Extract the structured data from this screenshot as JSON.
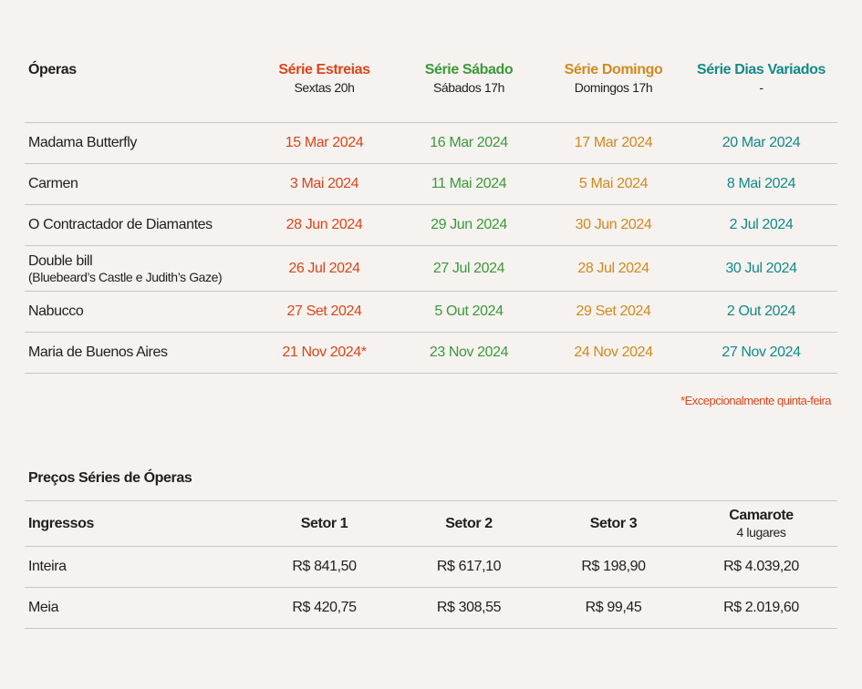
{
  "schedule": {
    "header": {
      "label": "Óperas",
      "series": [
        {
          "name": "Série Estreias",
          "sub": "Sextas 20h",
          "color": "#d9461b"
        },
        {
          "name": "Série Sábado",
          "sub": "Sábados 17h",
          "color": "#3a9a3a"
        },
        {
          "name": "Série Domingo",
          "sub": "Domingos 17h",
          "color": "#cf8a1f"
        },
        {
          "name": "Série Dias Variados",
          "sub": "-",
          "color": "#128a8a"
        }
      ]
    },
    "rows": [
      {
        "opera": "Madama Butterfly",
        "subtitle": "",
        "dates": [
          "15 Mar 2024",
          "16 Mar 2024",
          "17 Mar 2024",
          "20 Mar 2024"
        ]
      },
      {
        "opera": "Carmen",
        "subtitle": "",
        "dates": [
          "3 Mai 2024",
          "11 Mai 2024",
          "5 Mai 2024",
          "8 Mai 2024"
        ]
      },
      {
        "opera": "O Contractador de Diamantes",
        "subtitle": "",
        "dates": [
          "28 Jun 2024",
          "29 Jun 2024",
          "30 Jun 2024",
          "2 Jul 2024"
        ]
      },
      {
        "opera": "Double bill",
        "subtitle": "(Bluebeard’s Castle e Judith’s Gaze)",
        "dates": [
          "26 Jul 2024",
          "27 Jul 2024",
          "28 Jul 2024",
          "30 Jul 2024"
        ]
      },
      {
        "opera": "Nabucco",
        "subtitle": "",
        "dates": [
          "27 Set 2024",
          "5 Out 2024",
          "29 Set 2024",
          "2 Out 2024"
        ]
      },
      {
        "opera": "Maria de  Buenos Aires",
        "subtitle": "",
        "dates": [
          "21 Nov 2024*",
          "23 Nov 2024",
          "24 Nov 2024",
          "27 Nov 2024"
        ]
      }
    ],
    "footnote": "*Excepcionalmente quinta-feira"
  },
  "prices": {
    "title": "Preços Séries de Óperas",
    "header": {
      "label": "Ingressos",
      "sectors": [
        {
          "name": "Setor 1",
          "sub": ""
        },
        {
          "name": "Setor 2",
          "sub": ""
        },
        {
          "name": "Setor 3",
          "sub": ""
        },
        {
          "name": "Camarote",
          "sub": "4 lugares"
        }
      ]
    },
    "rows": [
      {
        "type": "Inteira",
        "values": [
          "R$ 841,50",
          "R$ 617,10",
          "R$ 198,90",
          "R$ 4.039,20"
        ]
      },
      {
        "type": "Meia",
        "values": [
          "R$ 420,75",
          "R$ 308,55",
          "R$ 99,45",
          "R$ 2.019,60"
        ]
      }
    ]
  }
}
